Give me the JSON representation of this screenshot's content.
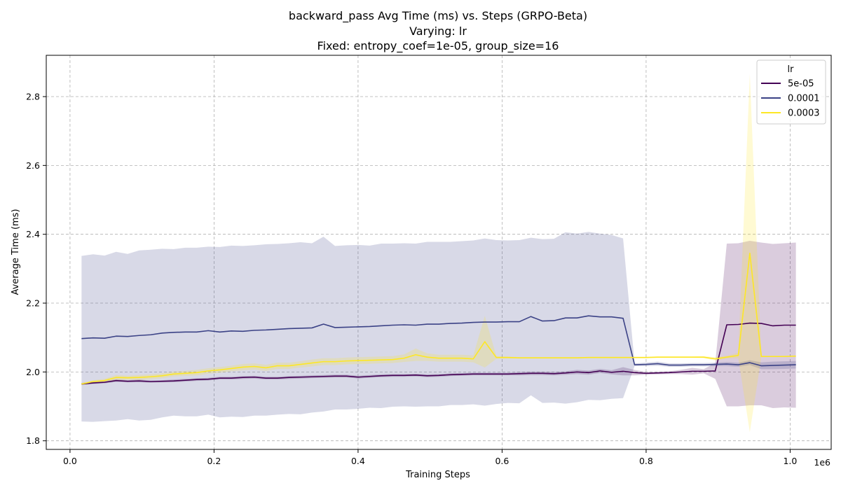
{
  "chart_data": {
    "type": "line",
    "title_lines": [
      "backward_pass Avg Time (ms) vs. Steps (GRPO-Beta)",
      "Varying: lr",
      "Fixed: entropy_coef=1e-05, group_size=16"
    ],
    "xlabel": "Training Steps",
    "ylabel": "Average Time (ms)",
    "x_offset_text": "1e6",
    "xlim": [
      -0.033,
      1.057
    ],
    "ylim": [
      1.775,
      2.92
    ],
    "xticks": [
      0.0,
      0.2,
      0.4,
      0.6,
      0.8,
      1.0
    ],
    "xtick_labels": [
      "0.0",
      "0.2",
      "0.4",
      "0.6",
      "0.8",
      "1.0"
    ],
    "yticks": [
      1.8,
      2.0,
      2.2,
      2.4,
      2.6,
      2.8
    ],
    "ytick_labels": [
      "1.8",
      "2.0",
      "2.2",
      "2.4",
      "2.6",
      "2.8"
    ],
    "grid": true,
    "legend": {
      "title": "lr",
      "placement": "top-right"
    },
    "x": [
      0.016,
      0.032,
      0.048,
      0.064,
      0.08,
      0.096,
      0.112,
      0.128,
      0.144,
      0.16,
      0.176,
      0.192,
      0.208,
      0.224,
      0.24,
      0.256,
      0.272,
      0.288,
      0.304,
      0.32,
      0.336,
      0.352,
      0.368,
      0.384,
      0.4,
      0.416,
      0.432,
      0.448,
      0.464,
      0.48,
      0.496,
      0.512,
      0.528,
      0.544,
      0.56,
      0.576,
      0.592,
      0.608,
      0.624,
      0.64,
      0.656,
      0.672,
      0.688,
      0.704,
      0.72,
      0.736,
      0.752,
      0.768,
      0.784,
      0.8,
      0.816,
      0.832,
      0.848,
      0.864,
      0.88,
      0.896,
      0.912,
      0.928,
      0.944,
      0.96,
      0.976,
      0.992,
      1.008
    ],
    "series": [
      {
        "name": "5e-05",
        "color": "#440154",
        "band_opacity": 0.2,
        "values": [
          1.965,
          1.968,
          1.97,
          1.975,
          1.973,
          1.974,
          1.972,
          1.973,
          1.974,
          1.976,
          1.978,
          1.979,
          1.982,
          1.982,
          1.984,
          1.985,
          1.982,
          1.982,
          1.984,
          1.985,
          1.986,
          1.987,
          1.988,
          1.988,
          1.985,
          1.987,
          1.989,
          1.99,
          1.99,
          1.991,
          1.989,
          1.99,
          1.992,
          1.993,
          1.994,
          1.994,
          1.994,
          1.994,
          1.995,
          1.996,
          1.996,
          1.995,
          1.997,
          2.0,
          1.998,
          2.003,
          1.999,
          2.002,
          1.998,
          1.996,
          1.997,
          1.998,
          2.0,
          2.002,
          2.002,
          2.003,
          2.137,
          2.138,
          2.142,
          2.141,
          2.134,
          2.136,
          2.136
        ],
        "lower": [
          1.962,
          1.965,
          1.967,
          1.971,
          1.97,
          1.97,
          1.969,
          1.97,
          1.97,
          1.972,
          1.974,
          1.975,
          1.978,
          1.978,
          1.98,
          1.981,
          1.978,
          1.978,
          1.98,
          1.981,
          1.982,
          1.983,
          1.984,
          1.984,
          1.981,
          1.983,
          1.985,
          1.986,
          1.986,
          1.987,
          1.985,
          1.986,
          1.988,
          1.989,
          1.99,
          1.99,
          1.99,
          1.99,
          1.99,
          1.991,
          1.991,
          1.99,
          1.992,
          1.994,
          1.992,
          1.997,
          1.993,
          1.99,
          1.99,
          1.992,
          1.993,
          1.994,
          1.994,
          1.992,
          1.996,
          1.98,
          1.9,
          1.9,
          1.903,
          1.903,
          1.895,
          1.897,
          1.896
        ],
        "upper": [
          1.968,
          1.971,
          1.973,
          1.979,
          1.976,
          1.978,
          1.975,
          1.976,
          1.978,
          1.98,
          1.982,
          1.983,
          1.986,
          1.986,
          1.988,
          1.989,
          1.986,
          1.986,
          1.988,
          1.989,
          1.99,
          1.991,
          1.992,
          1.992,
          1.989,
          1.991,
          1.993,
          1.994,
          1.994,
          1.995,
          1.993,
          1.994,
          1.996,
          1.997,
          1.998,
          1.998,
          1.998,
          1.998,
          2.0,
          2.001,
          2.001,
          2.0,
          2.002,
          2.006,
          2.004,
          2.009,
          2.005,
          2.014,
          2.006,
          2.0,
          2.001,
          2.002,
          2.006,
          2.012,
          2.008,
          2.026,
          2.373,
          2.374,
          2.381,
          2.376,
          2.372,
          2.374,
          2.376
        ]
      },
      {
        "name": "0.0001",
        "color": "#3b4286",
        "band_opacity": 0.2,
        "values": [
          2.097,
          2.099,
          2.098,
          2.104,
          2.103,
          2.106,
          2.108,
          2.113,
          2.115,
          2.116,
          2.116,
          2.12,
          2.116,
          2.119,
          2.118,
          2.121,
          2.122,
          2.124,
          2.126,
          2.127,
          2.128,
          2.139,
          2.129,
          2.13,
          2.131,
          2.132,
          2.134,
          2.136,
          2.137,
          2.136,
          2.139,
          2.139,
          2.141,
          2.142,
          2.144,
          2.145,
          2.145,
          2.146,
          2.146,
          2.161,
          2.148,
          2.149,
          2.157,
          2.157,
          2.163,
          2.16,
          2.16,
          2.156,
          2.021,
          2.022,
          2.024,
          2.02,
          2.02,
          2.021,
          2.021,
          2.022,
          2.023,
          2.021,
          2.027,
          2.018,
          2.019,
          2.02,
          2.021
        ],
        "lower": [
          1.856,
          1.855,
          1.857,
          1.859,
          1.863,
          1.859,
          1.861,
          1.868,
          1.873,
          1.871,
          1.871,
          1.876,
          1.868,
          1.87,
          1.869,
          1.873,
          1.873,
          1.876,
          1.878,
          1.877,
          1.882,
          1.885,
          1.891,
          1.891,
          1.893,
          1.896,
          1.895,
          1.899,
          1.9,
          1.899,
          1.9,
          1.9,
          1.904,
          1.904,
          1.906,
          1.902,
          1.907,
          1.91,
          1.909,
          1.932,
          1.91,
          1.911,
          1.908,
          1.912,
          1.919,
          1.918,
          1.922,
          1.924,
          2.017,
          2.017,
          2.018,
          2.015,
          2.015,
          2.016,
          2.016,
          2.017,
          2.017,
          2.015,
          2.02,
          2.008,
          2.008,
          2.009,
          2.01
        ],
        "upper": [
          2.337,
          2.342,
          2.338,
          2.349,
          2.343,
          2.353,
          2.355,
          2.358,
          2.357,
          2.361,
          2.361,
          2.364,
          2.363,
          2.367,
          2.366,
          2.368,
          2.371,
          2.372,
          2.374,
          2.377,
          2.374,
          2.393,
          2.366,
          2.368,
          2.369,
          2.367,
          2.373,
          2.373,
          2.374,
          2.373,
          2.378,
          2.378,
          2.378,
          2.38,
          2.382,
          2.388,
          2.383,
          2.382,
          2.383,
          2.39,
          2.386,
          2.387,
          2.406,
          2.402,
          2.407,
          2.402,
          2.398,
          2.388,
          2.025,
          2.027,
          2.03,
          2.025,
          2.025,
          2.026,
          2.026,
          2.027,
          2.029,
          2.027,
          2.034,
          2.028,
          2.03,
          2.031,
          2.032
        ]
      },
      {
        "name": "0.0003",
        "color": "#fde725",
        "band_opacity": 0.2,
        "values": [
          1.965,
          1.972,
          1.975,
          1.984,
          1.983,
          1.984,
          1.986,
          1.989,
          1.994,
          1.996,
          1.998,
          2.003,
          2.006,
          2.01,
          2.014,
          2.016,
          2.012,
          2.018,
          2.018,
          2.022,
          2.026,
          2.03,
          2.03,
          2.032,
          2.033,
          2.034,
          2.035,
          2.036,
          2.04,
          2.05,
          2.043,
          2.04,
          2.04,
          2.04,
          2.038,
          2.088,
          2.042,
          2.042,
          2.041,
          2.041,
          2.041,
          2.041,
          2.041,
          2.041,
          2.042,
          2.042,
          2.042,
          2.042,
          2.042,
          2.042,
          2.043,
          2.043,
          2.043,
          2.043,
          2.043,
          2.038,
          2.043,
          2.048,
          2.345,
          2.045,
          2.045,
          2.045,
          2.046
        ],
        "lower": [
          1.962,
          1.968,
          1.97,
          1.977,
          1.977,
          1.977,
          1.979,
          1.982,
          1.987,
          1.989,
          1.99,
          1.995,
          1.998,
          2.002,
          2.005,
          2.007,
          2.003,
          2.009,
          2.009,
          2.013,
          2.016,
          2.02,
          2.02,
          2.022,
          2.023,
          2.024,
          2.025,
          2.026,
          2.029,
          2.032,
          2.032,
          2.03,
          2.03,
          2.03,
          2.028,
          2.013,
          2.038,
          2.039,
          2.039,
          2.039,
          2.039,
          2.039,
          2.039,
          2.039,
          2.04,
          2.04,
          2.04,
          2.04,
          2.04,
          2.04,
          2.041,
          2.041,
          2.041,
          2.041,
          2.04,
          2.033,
          2.039,
          2.04,
          1.825,
          2.043,
          2.043,
          2.043,
          2.044
        ],
        "upper": [
          1.968,
          1.976,
          1.98,
          1.991,
          1.989,
          1.991,
          1.993,
          1.996,
          2.001,
          2.003,
          2.006,
          2.011,
          2.014,
          2.018,
          2.023,
          2.025,
          2.021,
          2.027,
          2.027,
          2.031,
          2.036,
          2.04,
          2.04,
          2.042,
          2.043,
          2.044,
          2.045,
          2.046,
          2.051,
          2.068,
          2.054,
          2.05,
          2.05,
          2.05,
          2.048,
          2.163,
          2.046,
          2.045,
          2.043,
          2.043,
          2.043,
          2.043,
          2.043,
          2.043,
          2.044,
          2.044,
          2.044,
          2.044,
          2.044,
          2.044,
          2.045,
          2.045,
          2.045,
          2.045,
          2.046,
          2.043,
          2.047,
          2.056,
          2.865,
          2.047,
          2.047,
          2.047,
          2.048
        ]
      }
    ]
  }
}
